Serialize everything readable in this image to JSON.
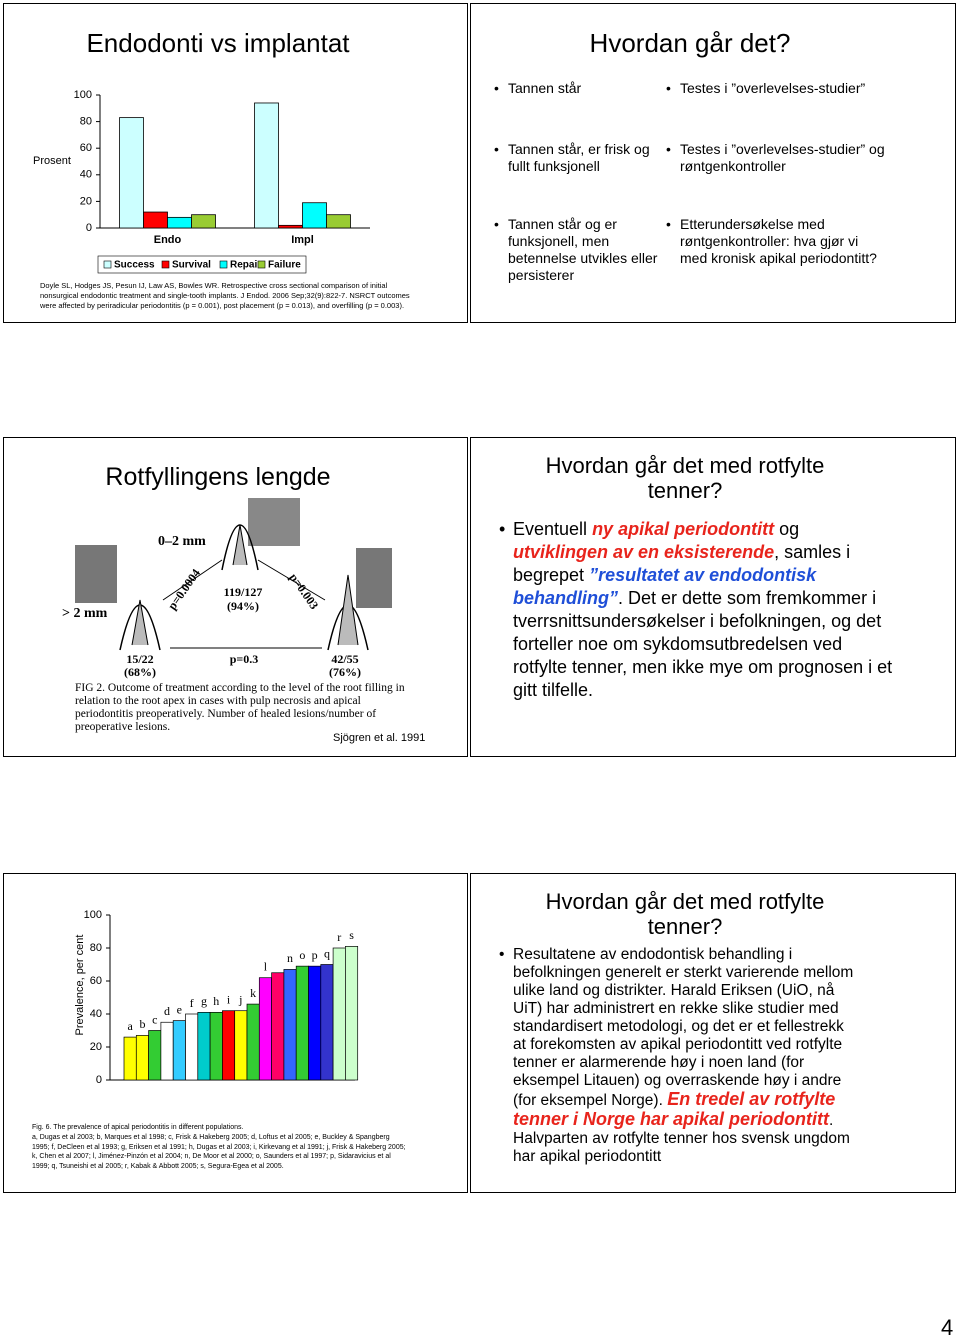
{
  "slides": [
    {
      "title": "Endodonti vs implantat",
      "chart": {
        "type": "bar",
        "y_label": "Prosent",
        "categories": [
          "Endo",
          "Impl"
        ],
        "series": [
          {
            "name": "Success",
            "color": "#ccffff",
            "values": [
              83,
              94
            ]
          },
          {
            "name": "Survival",
            "color": "#ff0000",
            "values": [
              12,
              2
            ]
          },
          {
            "name": "Repair",
            "color": "#00ffff",
            "values": [
              8,
              19
            ]
          },
          {
            "name": "Failure",
            "color": "#99cc33",
            "values": [
              10,
              10
            ]
          }
        ],
        "ylim": [
          0,
          100
        ],
        "yticks": [
          0,
          20,
          40,
          60,
          80,
          100
        ]
      },
      "reference": "Doyle SL, Hodges JS, Pesun IJ, Law AS, Bowles WR. Retrospective cross sectional comparison of initial nonsurgical endodontic treatment and single-tooth implants. J Endod. 2006 Sep;32(9):822-7. NSRCT outcomes were affected by periradicular periodontitis (p = 0.001), post placement (p = 0.013), and overfilling (p = 0.003)."
    },
    {
      "title": "Hvordan går det?",
      "rows": [
        [
          "Tannen står",
          "Testes i ”overlevelses-studier”"
        ],
        [
          "Tannen står, er frisk og fullt funksjonell",
          "Testes i ”overlevelses-studier” og røntgenkontroller"
        ],
        [
          "Tannen står og er funksjonell, men betennelse utvikles eller persisterer",
          "Etterundersøkelse med røntgenkontroller: hva gjør vi med kronisk apikal periodontitt?"
        ]
      ]
    },
    {
      "title": "Rotfyllingens lengde",
      "figure": {
        "top_label": "0–2 mm",
        "left_label": "> 2 mm",
        "p_left": "p=0.0004",
        "p_right": "p=0.003",
        "p_bottom": "p=0.3",
        "top_result": [
          "119/127",
          "(94%)"
        ],
        "left_result": [
          "15/22",
          "(68%)"
        ],
        "right_result": [
          "42/55",
          "(76%)"
        ],
        "caption": "FIG 2. Outcome of treatment according to the level of the root filling in relation to the root apex in cases with pulp necrosis and apical periodontitis preoperatively. Number of healed lesions/number of preoperative lesions."
      },
      "credit": "Sjögren et al. 1991"
    },
    {
      "title": "Hvordan går det med rotfylte tenner?",
      "bullet": [
        {
          "text": "Eventuell "
        },
        {
          "text": "ny apikal periodontitt",
          "color": "#e8241c"
        },
        {
          "text": " og "
        },
        {
          "text": "utviklingen av en eksisterende",
          "color": "#e8241c"
        },
        {
          "text": ", samles i begrepet "
        },
        {
          "text": "”resultatet av endodontisk behandling”",
          "color": "#1f4fd8"
        },
        {
          "text": ". Det er dette som fremkommer i tverrsnittsundersøkelser i befolkningen, og det forteller noe om sykdomsutbredelsen ved rotfylte tenner, men ikke mye om prognosen i et gitt tilfelle."
        }
      ]
    },
    {
      "chart": {
        "type": "bar",
        "y_label": "Prevalence, per cent",
        "categories": [
          "a",
          "b",
          "c",
          "d",
          "e",
          "f",
          "g",
          "h",
          "i",
          "j",
          "k",
          "l",
          null,
          "n",
          "o",
          "p",
          "q",
          "r",
          "s"
        ],
        "values": [
          26,
          27,
          30,
          35,
          36,
          40,
          41,
          41,
          42,
          42,
          46,
          62,
          65,
          67,
          69,
          69,
          70,
          80,
          81
        ],
        "colors": [
          "#ffff00",
          "#ffff00",
          "#33cc33",
          "#ffffff",
          "#33ccff",
          "#ffffff",
          "#00cccc",
          "#33cc33",
          "#ff0000",
          "#ffff00",
          "#33cc33",
          "#ff00ff",
          "#ff0066",
          "#3366ff",
          "#33cc33",
          "#0000ff",
          "#3333cc",
          "#ccffcc",
          "#ccffcc"
        ],
        "ylim": [
          0,
          100
        ],
        "yticks": [
          0,
          20,
          40,
          60,
          80,
          100
        ]
      },
      "caption": "Fig. 6. The prevalence of apical periodontitis in different populations.",
      "references": "a, Dugas et al 2003; b, Marques et al 1998; c, Frisk & Hakeberg 2005; d, Loftus et al 2005; e, Buckley & Spangberg 1995; f, DeCleen et al 1993; g, Eriksen et al 1991; h, Dugas et al 2003; i, Kirkevang et al 1991; j, Frisk & Hakeberg 2005; k, Chen et al 2007; l, Jiménez-Pinzón et al 2004; n, De Moor et al 2000; o, Saunders et al 1997; p, Sidaravicius et al 1999; q, Tsuneishi et al 2005; r, Kabak & Abbott 2005; s, Segura-Egea et al 2005."
    },
    {
      "title": "Hvordan går det med rotfylte tenner?",
      "bullet": [
        {
          "text": "Resultatene av endodontisk behandling i befolkningen generelt er sterkt varierende mellom ulike land og distrikter. Harald Eriksen (UiO, nå UiT) har administrert en rekke slike studier med standardisert metodologi, og det er et fellestrekk at forekomsten av apikal periodontitt ved rotfylte tenner er alarmerende høy i noen land (for eksempel Litauen) og overraskende høy i andre (for eksempel Norge). "
        },
        {
          "text": "En tredel av rotfylte tenner i Norge har apikal periodontitt",
          "color": "#e8241c"
        },
        {
          "text": ". Halvparten av rotfylte tenner hos svensk ungdom har apikal periodontitt"
        }
      ]
    }
  ],
  "page_number": 4
}
